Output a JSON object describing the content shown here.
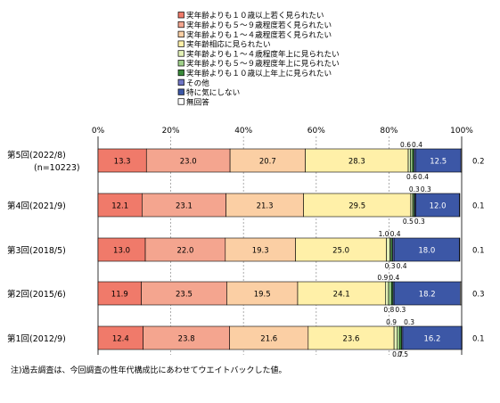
{
  "chart_data": {
    "type": "bar",
    "orientation": "horizontal",
    "stacked": true,
    "percent": true,
    "xlim": [
      0,
      100
    ],
    "xticks": [
      "0%",
      "20%",
      "40%",
      "60%",
      "80%",
      "100%"
    ],
    "grid": true,
    "legend_position": "top",
    "categories": [
      [
        "第5回(2022/8)",
        "(n=10223)"
      ],
      [
        "第4回(2021/9)"
      ],
      [
        "第3回(2018/5)"
      ],
      [
        "第2回(2015/6)"
      ],
      [
        "第1回(2012/9)"
      ]
    ],
    "series": [
      {
        "name": "実年齢よりも１０歳以上若く見られたい",
        "color": "#f07a6a",
        "values": [
          13.3,
          12.1,
          13.0,
          11.9,
          12.4
        ]
      },
      {
        "name": "実年齢よりも５～９歳程度若く見られたい",
        "color": "#f4a58f",
        "values": [
          23.0,
          23.1,
          22.0,
          23.5,
          23.8
        ]
      },
      {
        "name": "実年齢よりも１～４歳程度若く見られたい",
        "color": "#fbcfa4",
        "values": [
          20.7,
          21.3,
          19.3,
          19.5,
          21.6
        ]
      },
      {
        "name": "実年齢相応に見られたい",
        "color": "#fff0a8",
        "values": [
          28.3,
          29.5,
          25.0,
          24.1,
          23.6
        ]
      },
      {
        "name": "実年齢よりも１～４歳程度年上に見られたい",
        "color": "#e2f0b6",
        "values": [
          0.6,
          0.5,
          1.0,
          0.9,
          0.9
        ]
      },
      {
        "name": "実年齢よりも５～９歳程度年上に見られたい",
        "color": "#9fd08a",
        "values": [
          0.6,
          0.3,
          0.3,
          0.8,
          0.7
        ]
      },
      {
        "name": "実年齢よりも１０歳以上年上に見られたい",
        "color": "#3a8a3a",
        "values": [
          0.4,
          0.3,
          0.4,
          0.4,
          0.5
        ]
      },
      {
        "name": "その他",
        "color": "#6f75c4",
        "values": [
          0.4,
          0.3,
          0.4,
          0.3,
          0.3
        ]
      },
      {
        "name": "特に気にしない",
        "color": "#3c57a6",
        "values": [
          12.5,
          12.0,
          18.0,
          18.2,
          16.2
        ]
      },
      {
        "name": "無回答",
        "color": "#ffffff",
        "values": [
          0.2,
          0.1,
          0.1,
          0.3,
          0.1
        ]
      }
    ],
    "small_labels": [
      [
        {
          "t": "0.6",
          "pos": "above"
        },
        {
          "t": "0.6",
          "pos": "below"
        },
        {
          "t": "0.4",
          "pos": "above"
        },
        {
          "t": "0.4",
          "pos": "below"
        }
      ],
      [
        {
          "t": "0.5",
          "pos": "below"
        },
        {
          "t": "0.3",
          "pos": "above"
        },
        {
          "t": "0.3",
          "pos": "below"
        },
        {
          "t": "0.3",
          "pos": "above"
        }
      ],
      [
        {
          "t": "1.0",
          "pos": "above"
        },
        {
          "t": "0.3",
          "pos": "below"
        },
        {
          "t": "0.4",
          "pos": "above"
        },
        {
          "t": "0.4",
          "pos": "below"
        }
      ],
      [
        {
          "t": "0.9",
          "pos": "above"
        },
        {
          "t": "0.8",
          "pos": "below"
        },
        {
          "t": "0.4",
          "pos": "above"
        },
        {
          "t": "0.3",
          "pos": "below"
        }
      ],
      [
        {
          "t": "0.9",
          "pos": "above"
        },
        {
          "t": "0.7",
          "pos": "below"
        },
        {
          "t": "0.5",
          "pos": "below"
        },
        {
          "t": "0.3",
          "pos": "above"
        }
      ]
    ],
    "right_labels": [
      "0.2",
      "0.1",
      "0.1",
      "0.3",
      "0.1"
    ],
    "note": "注)過去調査は、今回調査の性年代構成比にあわせてウエイトバックした値。"
  }
}
